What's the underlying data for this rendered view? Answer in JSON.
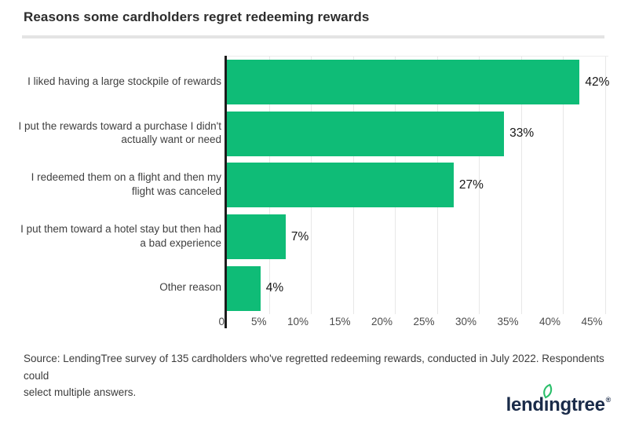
{
  "title": "Reasons some cardholders regret redeeming rewards",
  "chart_data": {
    "type": "bar",
    "orientation": "horizontal",
    "title": "Reasons some cardholders regret redeeming rewards",
    "categories": [
      "I liked having a large stockpile of rewards",
      "I put the rewards toward a purchase I didn't\nactually want or need",
      "I redeemed them on a flight and then my\nflight was canceled",
      "I put them toward a hotel stay but then had\na bad experience",
      "Other reason"
    ],
    "values": [
      42,
      33,
      27,
      7,
      4
    ],
    "value_labels": [
      "42%",
      "33%",
      "27%",
      "7%",
      "4%"
    ],
    "xlabel": "",
    "ylabel": "",
    "xlim": [
      0,
      45
    ],
    "x_ticks": [
      {
        "value": 0,
        "label": "0"
      },
      {
        "value": 5,
        "label": "5%"
      },
      {
        "value": 10,
        "label": "10%"
      },
      {
        "value": 15,
        "label": "15%"
      },
      {
        "value": 20,
        "label": "20%"
      },
      {
        "value": 25,
        "label": "25%"
      },
      {
        "value": 30,
        "label": "30%"
      },
      {
        "value": 35,
        "label": "35%"
      },
      {
        "value": 40,
        "label": "40%"
      },
      {
        "value": 45,
        "label": "45%"
      }
    ],
    "grid": "vertical",
    "legend": "none",
    "bar_color": "#0fbc77"
  },
  "source_note": "Source: LendingTree survey of 135 cardholders who've regretted redeeming rewards, conducted in July 2022. Respondents could\nselect multiple answers.",
  "logo": {
    "text_before_i": "lend",
    "dotless_i": "ı",
    "text_after_i": "ngtree",
    "registered_mark": "®",
    "wordmark_color": "#1a2b49",
    "leaf_color": "#2abf6a"
  },
  "colors": {
    "bar_green": "#0fbc77",
    "axis_line": "#1c1c1c",
    "gridline": "#e7e7e7",
    "divider": "#e4e4e4",
    "title_text": "#2d2d2d",
    "category_text": "#3f3f3f",
    "tick_text": "#4b4b4b",
    "value_text": "#161616",
    "source_text": "#3c3c3c"
  }
}
